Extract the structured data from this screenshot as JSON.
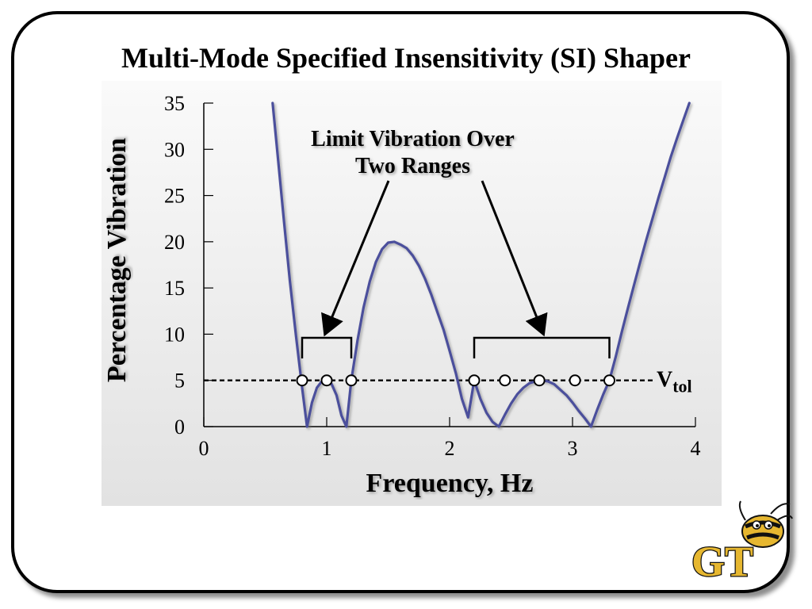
{
  "slide": {
    "title": "Multi-Mode Specified Insensitivity (SI) Shaper"
  },
  "chart_data": {
    "type": "line",
    "title": "Multi-Mode Specified Insensitivity (SI) Shaper",
    "xlabel": "Frequency, Hz",
    "ylabel": "Percentage Vibration",
    "xlim": [
      0,
      4
    ],
    "ylim": [
      0,
      35
    ],
    "xticks": [
      0,
      1,
      2,
      3,
      4
    ],
    "yticks": [
      0,
      5,
      10,
      15,
      20,
      25,
      30,
      35
    ],
    "grid": false,
    "series": [
      {
        "color": "#4b4f9c",
        "x": [
          0.56,
          0.6,
          0.65,
          0.7,
          0.75,
          0.8,
          0.84,
          0.88,
          0.92,
          0.96,
          1.0,
          1.04,
          1.08,
          1.12,
          1.16,
          1.2,
          1.25,
          1.3,
          1.35,
          1.4,
          1.45,
          1.5,
          1.55,
          1.6,
          1.65,
          1.7,
          1.75,
          1.8,
          1.85,
          1.9,
          1.95,
          2.0,
          2.05,
          2.1,
          2.15,
          2.2,
          2.25,
          2.3,
          2.35,
          2.4,
          2.45,
          2.5,
          2.55,
          2.6,
          2.65,
          2.7,
          2.75,
          2.8,
          2.85,
          2.9,
          2.95,
          3.0,
          3.05,
          3.1,
          3.15,
          3.2,
          3.25,
          3.3,
          3.35,
          3.4,
          3.45,
          3.5,
          3.55,
          3.6,
          3.65,
          3.7,
          3.75,
          3.8,
          3.85,
          3.9,
          3.95
        ],
        "y": [
          35,
          29.5,
          22.5,
          15.8,
          9.8,
          4.2,
          0,
          2.6,
          4.2,
          4.9,
          5.0,
          4.6,
          3.4,
          1.2,
          0,
          5.0,
          9.3,
          12.9,
          15.7,
          17.8,
          19.2,
          19.9,
          20.0,
          19.7,
          19.3,
          18.5,
          17.4,
          16.0,
          14.3,
          12.4,
          10.5,
          8.2,
          5.8,
          3.0,
          1.0,
          5.0,
          3.0,
          1.5,
          0.5,
          0,
          1.3,
          2.5,
          3.5,
          4.2,
          4.7,
          4.9,
          5.0,
          4.9,
          4.6,
          4.0,
          3.4,
          2.6,
          1.7,
          0.9,
          0,
          1.8,
          3.5,
          5.0,
          7.5,
          10.2,
          12.8,
          15.3,
          17.8,
          20.2,
          22.5,
          24.8,
          27.0,
          29.2,
          31.2,
          33.1,
          35
        ]
      }
    ],
    "reference_line": {
      "label": "V",
      "label_sub": "tol",
      "y": 5
    },
    "markers": {
      "x": [
        0.8,
        1.0,
        1.2,
        2.2,
        2.45,
        2.73,
        3.02,
        3.3
      ],
      "y": [
        5,
        5,
        5,
        5,
        5,
        5,
        5,
        5
      ]
    },
    "brackets": [
      {
        "x_start": 0.8,
        "x_end": 1.2
      },
      {
        "x_start": 2.2,
        "x_end": 3.3
      }
    ],
    "annotation": {
      "lines": [
        "Limit Vibration Over",
        "Two Ranges"
      ],
      "arrow_targets": [
        {
          "x": 1.0
        },
        {
          "x": 2.75
        }
      ]
    }
  },
  "logo": {
    "text": "GT",
    "icon": "yellow-jacket-logo-icon"
  },
  "colors": {
    "curve": "#4b4f9c",
    "logo_gold": "#e6b730",
    "chart_bg_top": "#fafafa",
    "chart_bg_bottom": "#e4e4e4"
  }
}
